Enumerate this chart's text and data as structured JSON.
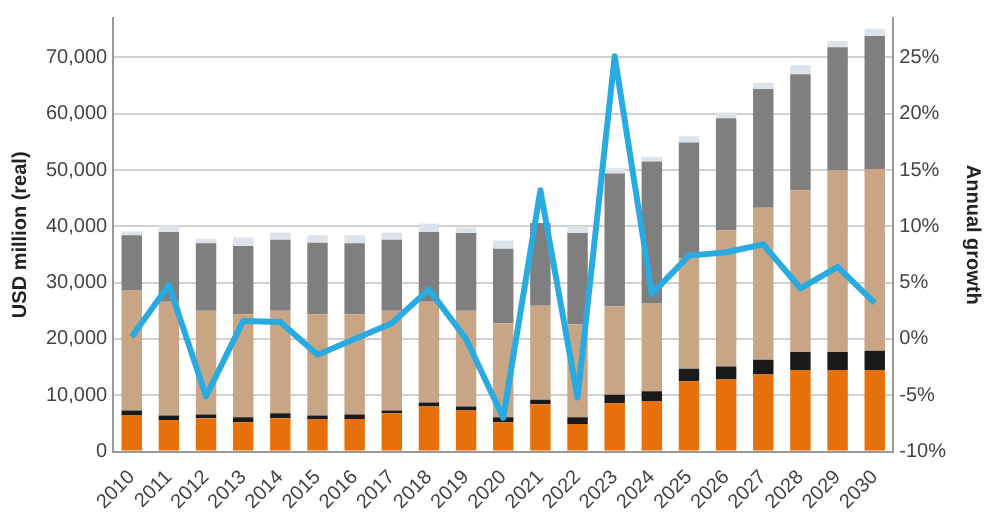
{
  "chart_data": {
    "type": "bar",
    "stacked": true,
    "ylabel": "USD million (real)",
    "y2label": "Annual growth",
    "categories": [
      "2010",
      "2011",
      "2012",
      "2013",
      "2014",
      "2015",
      "2016",
      "2017",
      "2018",
      "2019",
      "2020",
      "2021",
      "2022",
      "2023",
      "2024",
      "2025",
      "2026",
      "2027",
      "2028",
      "2029",
      "2030"
    ],
    "series": [
      {
        "color": "#e8700a",
        "values": [
          6400,
          5600,
          5900,
          5200,
          5900,
          5700,
          5800,
          6800,
          8000,
          7300,
          5200,
          8400,
          4900,
          8600,
          9000,
          12500,
          12800,
          13700,
          14500,
          14500,
          14500
        ]
      },
      {
        "color": "#1a1a1a",
        "values": [
          900,
          800,
          700,
          900,
          900,
          700,
          800,
          500,
          700,
          700,
          900,
          800,
          1200,
          1500,
          1700,
          2200,
          2300,
          2600,
          3200,
          3200,
          3400
        ]
      },
      {
        "color": "#c8a584",
        "values": [
          21400,
          20200,
          18400,
          18300,
          18200,
          18000,
          17800,
          17700,
          17900,
          17000,
          16700,
          16700,
          16500,
          15700,
          15700,
          19600,
          24200,
          27000,
          28700,
          32200,
          32300
        ]
      },
      {
        "color": "#7f7f7f",
        "values": [
          9700,
          12400,
          12000,
          12100,
          12600,
          12700,
          12600,
          12600,
          12400,
          13800,
          13200,
          14700,
          16200,
          23600,
          25100,
          20600,
          19900,
          21100,
          20600,
          21900,
          23600
        ]
      },
      {
        "color": "#dce3ea",
        "values": [
          700,
          1300,
          800,
          1500,
          1300,
          1300,
          1400,
          1300,
          1500,
          1000,
          1500,
          null,
          1200,
          900,
          800,
          1100,
          1000,
          1100,
          1600,
          1100,
          1300
        ]
      },
      {
        "type": "line",
        "axis": "y2",
        "color": "#29abe2",
        "values": [
          0.2,
          4.8,
          -5.1,
          1.6,
          1.5,
          -1.4,
          0,
          1.4,
          4.4,
          0,
          -7.0,
          13.2,
          -5.2,
          25.1,
          4.0,
          7.4,
          7.7,
          8.4,
          4.5,
          6.4,
          3.2
        ]
      }
    ],
    "ylim": [
      0,
      77000
    ],
    "yticks": [
      0,
      {
        "value": 10000,
        "label": "10,000"
      },
      {
        "value": 20000,
        "label": "20,000"
      },
      {
        "value": 30000,
        "label": "30,000"
      },
      {
        "value": 40000,
        "label": "40,000"
      },
      {
        "value": 50000,
        "label": "50,000"
      },
      {
        "value": 60000,
        "label": "60,000"
      },
      {
        "value": 70000,
        "label": "70,000"
      }
    ],
    "y2lim": [
      -10,
      28.5
    ],
    "y2ticks": [
      {
        "value": -10,
        "label": "-10%"
      },
      {
        "value": -5,
        "label": "-5%"
      },
      {
        "value": 0,
        "label": "0%"
      },
      {
        "value": 5,
        "label": "5%"
      },
      {
        "value": 10,
        "label": "10%"
      },
      {
        "value": 15,
        "label": "15%"
      },
      {
        "value": 20,
        "label": "20%"
      },
      {
        "value": 25,
        "label": "25%"
      }
    ],
    "grid": "y",
    "legend": false,
    "marker": "none",
    "line_style": "solid"
  }
}
